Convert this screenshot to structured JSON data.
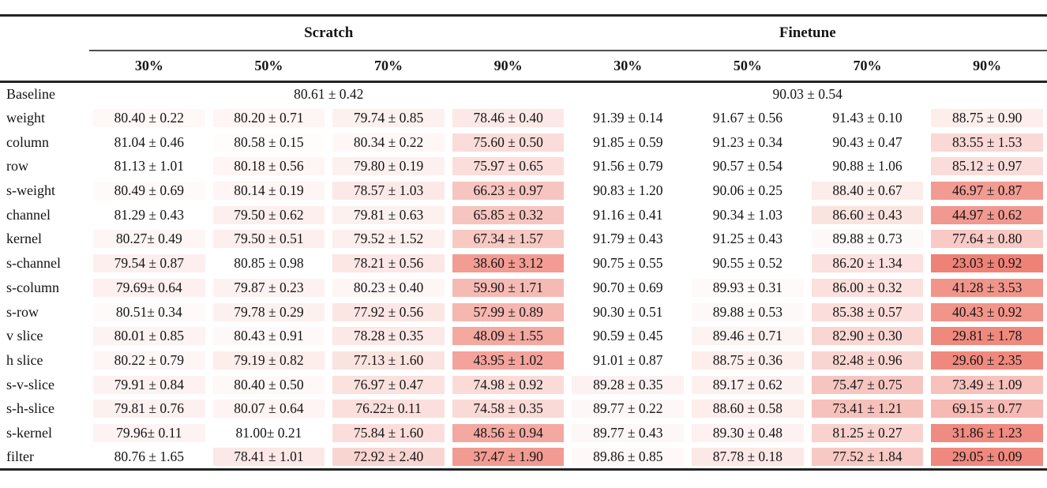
{
  "table": {
    "group_headers": [
      {
        "label": "Scratch"
      },
      {
        "label": "Finetune"
      }
    ],
    "percent_headers": [
      "30%",
      "50%",
      "70%",
      "90%"
    ],
    "baseline_row": {
      "label": "Baseline",
      "scratch_value": "80.61 ± 0.42",
      "finetune_value": "90.03 ± 0.54"
    },
    "rows": [
      {
        "label": "weight",
        "values": [
          "80.40 ± 0.22",
          "80.20 ± 0.71",
          "79.74 ± 0.85",
          "78.46 ± 0.40",
          "91.39 ± 0.14",
          "91.67 ± 0.56",
          "91.43 ± 0.10",
          "88.75 ± 0.90"
        ]
      },
      {
        "label": "column",
        "values": [
          "81.04 ± 0.46",
          "80.58 ± 0.15",
          "80.34 ± 0.22",
          "75.60 ± 0.50",
          "91.85 ± 0.59",
          "91.23 ± 0.34",
          "90.43 ± 0.47",
          "83.55 ± 1.53"
        ]
      },
      {
        "label": "row",
        "values": [
          "81.13 ± 1.01",
          "80.18 ± 0.56",
          "79.80 ± 0.19",
          "75.97 ± 0.65",
          "91.56 ± 0.79",
          "90.57 ± 0.54",
          "90.88 ± 1.06",
          "85.12 ± 0.97"
        ]
      },
      {
        "label": "s-weight",
        "values": [
          "80.49 ± 0.69",
          "80.14 ± 0.19",
          "78.57 ± 1.03",
          "66.23 ± 0.97",
          "90.83 ± 1.20",
          "90.06 ± 0.25",
          "88.40 ± 0.67",
          "46.97 ± 0.87"
        ]
      },
      {
        "label": "channel",
        "values": [
          "81.29 ± 0.43",
          "79.50 ± 0.62",
          "79.81 ± 0.63",
          "65.85 ± 0.32",
          "91.16 ± 0.41",
          "90.34 ± 1.03",
          "86.60 ± 0.43",
          "44.97 ± 0.62"
        ]
      },
      {
        "label": "kernel",
        "values": [
          "80.27± 0.49",
          "79.50 ± 0.51",
          "79.52 ± 1.52",
          "67.34 ± 1.57",
          "91.79 ± 0.43",
          "91.25 ± 0.43",
          "89.88 ± 0.73",
          "77.64 ± 0.80"
        ]
      },
      {
        "label": "s-channel",
        "values": [
          "79.54 ± 0.87",
          "80.85 ± 0.98",
          "78.21 ± 0.56",
          "38.60 ± 3.12",
          "90.75 ± 0.55",
          "90.55 ± 0.52",
          "86.20 ± 1.34",
          "23.03 ± 0.92"
        ]
      },
      {
        "label": "s-column",
        "values": [
          "79.69± 0.64",
          "79.87 ± 0.23",
          "80.23 ± 0.40",
          "59.90 ± 1.71",
          "90.70 ± 0.69",
          "89.93 ± 0.31",
          "86.00 ± 0.32",
          "41.28 ± 3.53"
        ]
      },
      {
        "label": "s-row",
        "values": [
          "80.51± 0.34",
          "79.78 ± 0.29",
          "77.92 ± 0.56",
          "57.99 ± 0.89",
          "90.30 ± 0.51",
          "89.88 ± 0.53",
          "85.38 ± 0.57",
          "40.43 ± 0.92"
        ]
      },
      {
        "label": "v slice",
        "values": [
          "80.01 ± 0.85",
          "80.43 ± 0.91",
          "78.28 ± 0.35",
          "48.09 ± 1.55",
          "90.59 ± 0.45",
          "89.46 ± 0.71",
          "82.90 ± 0.30",
          "29.81 ± 1.78"
        ]
      },
      {
        "label": "h slice",
        "values": [
          "80.22 ± 0.79",
          "79.19 ± 0.82",
          "77.13 ± 1.60",
          "43.95 ± 1.02",
          "91.01 ± 0.87",
          "88.75 ± 0.36",
          "82.48 ± 0.96",
          "29.60 ± 2.35"
        ]
      },
      {
        "label": "s-v-slice",
        "values": [
          "79.91 ± 0.84",
          "80.40 ± 0.50",
          "76.97 ± 0.47",
          "74.98 ± 0.92",
          "89.28 ± 0.35",
          "89.17 ± 0.62",
          "75.47 ± 0.75",
          "73.49 ± 1.09"
        ]
      },
      {
        "label": "s-h-slice",
        "values": [
          "79.81 ± 0.76",
          "80.07 ± 0.64",
          "76.22± 0.11",
          "74.58 ± 0.35",
          "89.77 ± 0.22",
          "88.60 ± 0.58",
          "73.41 ± 1.21",
          "69.15 ± 0.77"
        ]
      },
      {
        "label": "s-kernel",
        "values": [
          "79.96± 0.11",
          "81.00± 0.21",
          "75.84 ± 1.60",
          "48.56 ± 0.94",
          "89.77 ± 0.43",
          "89.30 ± 0.48",
          "81.25 ± 0.27",
          "31.86 ± 1.23"
        ]
      },
      {
        "label": "filter",
        "values": [
          "80.76 ± 1.65",
          "78.41 ± 1.01",
          "72.92 ± 2.40",
          "37.47 ± 1.90",
          "89.86 ± 0.85",
          "87.78 ± 0.18",
          "77.52 ± 1.84",
          "29.05 ± 0.09"
        ]
      }
    ]
  },
  "heatmap": {
    "base_color": "#e74c3c",
    "background_color": "#ffffff",
    "baselines": {
      "scratch": 80.61,
      "finetune": 90.03
    },
    "coefficient": 0.085,
    "max_mix": 0.72
  },
  "rules": {
    "heavy_color": "#232323",
    "light_color": "#4d4d4d"
  },
  "text_color": "#141414"
}
